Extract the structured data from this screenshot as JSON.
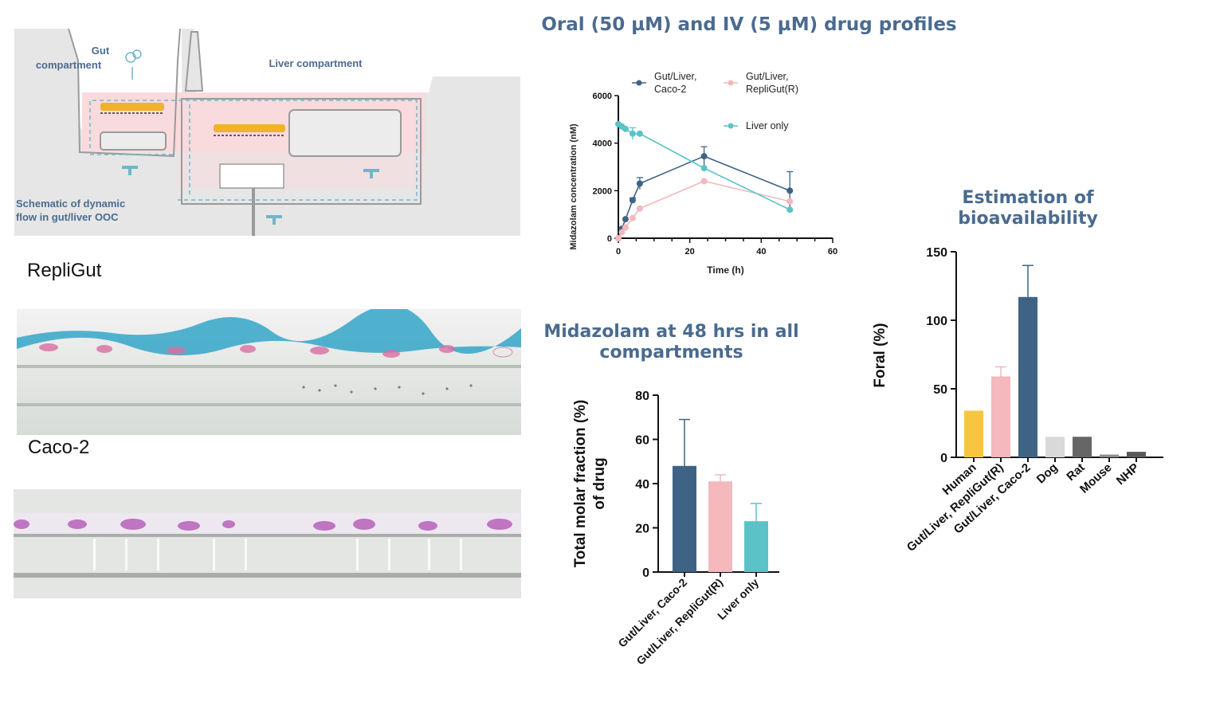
{
  "schematic": {
    "gut_label_line1": "Gut",
    "gut_label_line2": "compartment",
    "liver_label": "Liver compartment",
    "caption_line1": "Schematic of dynamic",
    "caption_line2": "flow in gut/liver OOC"
  },
  "micrographs": {
    "repligut_label": "RepliGut",
    "caco2_label": "Caco-2"
  },
  "colors": {
    "caco2": "#3f6384",
    "repligut": "#f4b8bd",
    "liver": "#5bc3c8",
    "human": "#f7c540",
    "dog": "#d9d9d9",
    "rat": "#666666",
    "mouse": "#8c8c8c",
    "nhp": "#595959",
    "heading": "#4a6b8f"
  },
  "chart_data": [
    {
      "id": "profiles",
      "type": "line",
      "title": "Oral (50 µM) and IV (5 µM) drug profiles",
      "xlabel": "Time (h)",
      "ylabel": "Midazolam concentration (nM)",
      "xlim": [
        0,
        60
      ],
      "ylim": [
        0,
        6000
      ],
      "xticks": [
        0,
        20,
        40,
        60
      ],
      "yticks": [
        0,
        2000,
        4000,
        6000
      ],
      "legend_placement": "top",
      "series": [
        {
          "name_line1": "Gut/Liver,",
          "name_line2": "Caco-2",
          "color": "#3f6384",
          "x": [
            0,
            1,
            2,
            4,
            6,
            24,
            48
          ],
          "y": [
            0,
            400,
            800,
            1600,
            2300,
            3450,
            2000
          ],
          "err": [
            0,
            0,
            0,
            100,
            250,
            400,
            800
          ]
        },
        {
          "name_line1": "Gut/Liver,",
          "name_line2": "RepliGut(R)",
          "color": "#f4b8bd",
          "x": [
            0,
            1,
            2,
            4,
            6,
            24,
            48
          ],
          "y": [
            0,
            250,
            450,
            850,
            1250,
            2400,
            1550
          ],
          "err": [
            0,
            0,
            0,
            0,
            0,
            0,
            0
          ]
        },
        {
          "name_line1": "Liver only",
          "name_line2": "",
          "color": "#5bc3c8",
          "x": [
            0,
            1,
            2,
            4,
            6,
            24,
            48
          ],
          "y": [
            4800,
            4700,
            4600,
            4400,
            4400,
            2950,
            1200
          ],
          "err": [
            0,
            0,
            0,
            250,
            0,
            0,
            0
          ]
        }
      ]
    },
    {
      "id": "molar",
      "type": "bar",
      "title_line1": "Midazolam at 48 hrs in all",
      "title_line2": "compartments",
      "ylabel_line1": "Total molar fraction (%)",
      "ylabel_line2": "of drug",
      "ylim": [
        0,
        80
      ],
      "yticks": [
        0,
        20,
        40,
        60,
        80
      ],
      "categories": [
        "Gut/Liver, Caco-2",
        "Gut/Liver, RepliGut(R)",
        "Liver only"
      ],
      "values": [
        48,
        41,
        23
      ],
      "errors": [
        21,
        3,
        8
      ],
      "colors": [
        "#3f6384",
        "#f4b8bd",
        "#5bc3c8"
      ]
    },
    {
      "id": "foral",
      "type": "bar",
      "title_line1": "Estimation of",
      "title_line2": "bioavailability",
      "ylabel": "Foral (%)",
      "ylim": [
        0,
        150
      ],
      "yticks": [
        0,
        50,
        100,
        150
      ],
      "categories": [
        "Human",
        "Gut/Liver, RepliGut(R)",
        "Gut/Liver, Caco-2",
        "Dog",
        "Rat",
        "Mouse",
        "NHP"
      ],
      "values": [
        34,
        59,
        117,
        15,
        15,
        2,
        4
      ],
      "errors": [
        0,
        7,
        23,
        0,
        0,
        0,
        0
      ],
      "colors": [
        "#f7c540",
        "#f4b8bd",
        "#3f6384",
        "#d9d9d9",
        "#666666",
        "#8c8c8c",
        "#595959"
      ]
    }
  ]
}
